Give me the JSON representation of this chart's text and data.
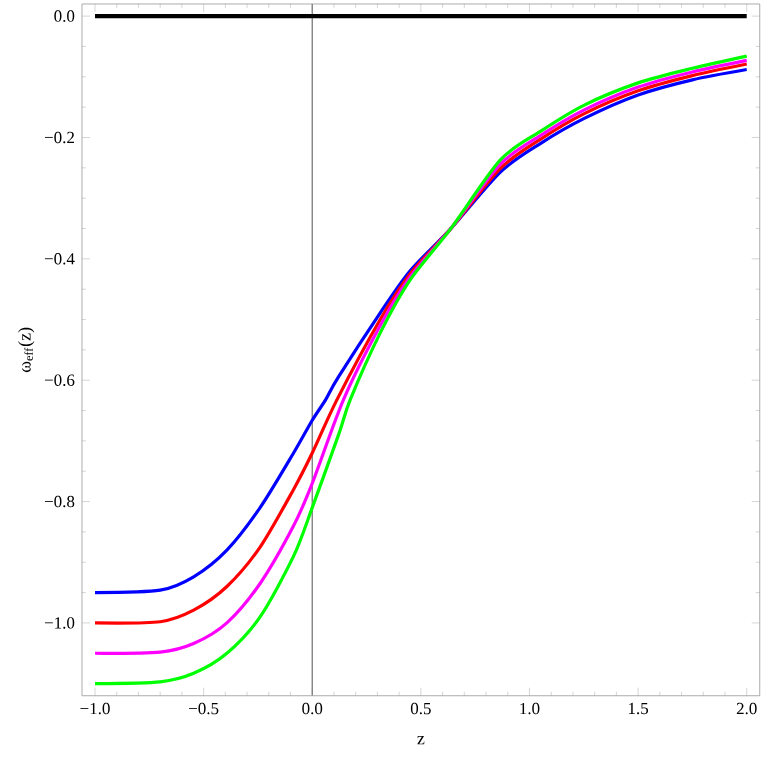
{
  "chart_data": {
    "type": "line",
    "xlabel": "z",
    "ylabel": "ω$_{eff}$(z)",
    "xlim": [
      -1.06,
      2.06
    ],
    "ylim": [
      -1.12,
      0.02
    ],
    "xticks": [
      {
        "value": -1,
        "label": "−1.0"
      },
      {
        "value": -0.5,
        "label": "−0.5"
      },
      {
        "value": 0,
        "label": "0.0"
      },
      {
        "value": 0.5,
        "label": "0.5"
      },
      {
        "value": 1,
        "label": "1.0"
      },
      {
        "value": 1.5,
        "label": "1.5"
      },
      {
        "value": 2,
        "label": "2.0"
      }
    ],
    "yticks": [
      {
        "value": 0,
        "label": "0.0"
      },
      {
        "value": -0.2,
        "label": "−0.2"
      },
      {
        "value": -0.4,
        "label": "−0.4"
      },
      {
        "value": -0.6,
        "label": "−0.6"
      },
      {
        "value": -0.8,
        "label": "−0.8"
      },
      {
        "value": -1,
        "label": "−1.0"
      }
    ],
    "grid": false,
    "marker": "none",
    "ref_lines": [
      {
        "axis": "x",
        "value": 0,
        "color": "#808080"
      }
    ],
    "series": [
      {
        "color": "#000000",
        "x": [
          -1,
          2
        ],
        "values": [
          0,
          0
        ]
      },
      {
        "color": "#0000ff",
        "x": [
          -1,
          -0.7,
          -0.546,
          -0.393,
          -0.24,
          -0.086,
          0,
          0.062,
          0.12,
          0.313,
          0.45,
          0.636,
          0.866,
          1.05,
          1.25,
          1.5,
          1.75,
          2
        ],
        "values": [
          -0.95,
          -0.946,
          -0.924,
          -0.88,
          -0.81,
          -0.72,
          -0.666,
          -0.632,
          -0.595,
          -0.489,
          -0.42,
          -0.351,
          -0.257,
          -0.21,
          -0.169,
          -0.13,
          -0.105,
          -0.088
        ]
      },
      {
        "color": "#ff0000",
        "x": [
          -1,
          -0.7,
          -0.546,
          -0.393,
          -0.24,
          -0.086,
          0,
          0.114,
          0.313,
          0.45,
          0.636,
          0.866,
          1.05,
          1.25,
          1.5,
          1.75,
          2
        ],
        "values": [
          -1.0,
          -0.998,
          -0.979,
          -0.94,
          -0.875,
          -0.78,
          -0.72,
          -0.632,
          -0.5,
          -0.425,
          -0.351,
          -0.251,
          -0.203,
          -0.161,
          -0.123,
          -0.098,
          -0.079
        ]
      },
      {
        "color": "#ff00ff",
        "x": [
          -1,
          -0.7,
          -0.546,
          -0.393,
          -0.24,
          -0.086,
          0,
          0.144,
          0.313,
          0.45,
          0.636,
          0.866,
          1.05,
          1.25,
          1.5,
          1.75,
          2
        ],
        "values": [
          -1.05,
          -1.048,
          -1.034,
          -1.0,
          -0.935,
          -0.84,
          -0.77,
          -0.632,
          -0.51,
          -0.43,
          -0.351,
          -0.244,
          -0.197,
          -0.155,
          -0.117,
          -0.092,
          -0.073
        ]
      },
      {
        "color": "#00ff00",
        "x": [
          -1,
          -0.7,
          -0.546,
          -0.393,
          -0.24,
          -0.086,
          0,
          0.123,
          0.175,
          0.313,
          0.45,
          0.636,
          0.866,
          1.05,
          1.25,
          1.5,
          1.75,
          2
        ],
        "values": [
          -1.1,
          -1.097,
          -1.083,
          -1.05,
          -0.99,
          -0.89,
          -0.81,
          -0.688,
          -0.632,
          -0.522,
          -0.435,
          -0.351,
          -0.237,
          -0.19,
          -0.147,
          -0.11,
          -0.086,
          -0.066
        ]
      }
    ]
  }
}
